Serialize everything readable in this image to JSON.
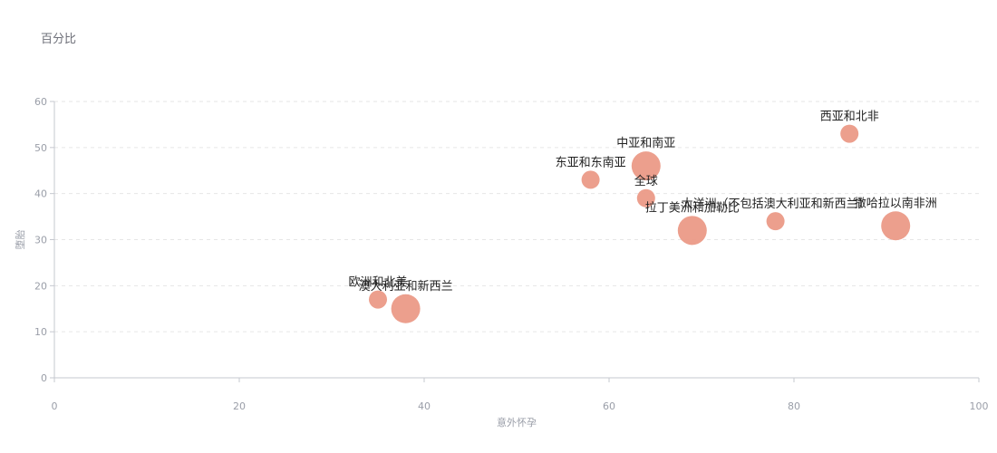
{
  "chart_data": {
    "type": "scatter",
    "title": "百分比",
    "xlabel": "意外怀孕",
    "ylabel": "堕胎",
    "xlim": [
      0,
      100
    ],
    "ylim": [
      0,
      60
    ],
    "xticks": [
      0,
      20,
      40,
      60,
      80,
      100
    ],
    "yticks": [
      0,
      10,
      20,
      30,
      40,
      50,
      60
    ],
    "grid": "horizontal dashed",
    "color": "#eb9a87",
    "points": [
      {
        "label": "西亚和北非",
        "x": 86,
        "y": 53,
        "size": "small"
      },
      {
        "label": "中亚和南亚",
        "x": 64,
        "y": 46,
        "size": "large"
      },
      {
        "label": "东亚和东南亚",
        "x": 58,
        "y": 43,
        "size": "small"
      },
      {
        "label": "全球",
        "x": 64,
        "y": 39,
        "size": "small"
      },
      {
        "label": "大洋洲（不包括澳大利亚和新西兰）",
        "x": 78,
        "y": 34,
        "size": "small"
      },
      {
        "label": "拉丁美洲和加勒比",
        "x": 69,
        "y": 32,
        "size": "large"
      },
      {
        "label": "撒哈拉以南非洲",
        "x": 91,
        "y": 33,
        "size": "large"
      },
      {
        "label": "欧洲和北美",
        "x": 35,
        "y": 17,
        "size": "small"
      },
      {
        "label": "澳大利亚和新西兰",
        "x": 38,
        "y": 15,
        "size": "large"
      }
    ]
  }
}
